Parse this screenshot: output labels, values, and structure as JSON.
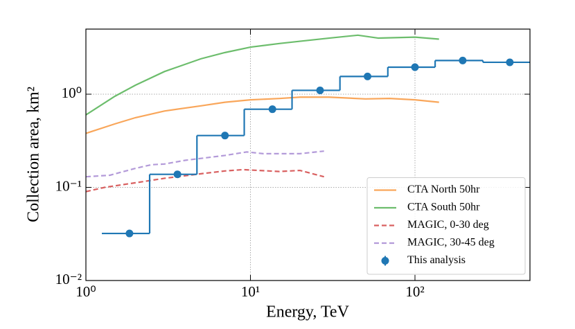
{
  "chart_data": {
    "type": "line",
    "xlabel": "Energy, TeV",
    "ylabel": "Collection area, km²",
    "xscale": "log",
    "yscale": "log",
    "xlim": [
      1,
      500
    ],
    "ylim": [
      0.01,
      5
    ],
    "xticks": [
      {
        "value": 1,
        "label": "10⁰"
      },
      {
        "value": 10,
        "label": "10¹"
      },
      {
        "value": 100,
        "label": "10²"
      }
    ],
    "yticks": [
      {
        "value": 0.01,
        "label": "10⁻²"
      },
      {
        "value": 0.1,
        "label": "10⁻¹"
      },
      {
        "value": 1,
        "label": "10⁰"
      }
    ],
    "grid": true,
    "legend": "lower right",
    "series": [
      {
        "name": "CTA North 50hr",
        "color": "#f9a65a",
        "style": "solid",
        "x": [
          1,
          1.5,
          2,
          3,
          5,
          7,
          10,
          15,
          20,
          30,
          50,
          70,
          100,
          140
        ],
        "values": [
          0.38,
          0.48,
          0.56,
          0.66,
          0.75,
          0.82,
          0.87,
          0.9,
          0.93,
          0.93,
          0.89,
          0.9,
          0.87,
          0.82
        ]
      },
      {
        "name": "CTA South 50hr",
        "color": "#6cbd6c",
        "style": "solid",
        "x": [
          1,
          1.5,
          2,
          3,
          5,
          7,
          10,
          15,
          20,
          30,
          45,
          60,
          100,
          140
        ],
        "values": [
          0.6,
          0.95,
          1.25,
          1.75,
          2.4,
          2.8,
          3.2,
          3.5,
          3.7,
          4.0,
          4.3,
          4.0,
          4.1,
          3.9
        ]
      },
      {
        "name": "MAGIC, 0-30 deg",
        "color": "#d96060",
        "style": "dashed",
        "x": [
          1,
          1.3,
          2,
          3,
          5,
          7,
          9,
          15,
          20,
          28
        ],
        "values": [
          0.09,
          0.1,
          0.112,
          0.125,
          0.14,
          0.15,
          0.155,
          0.148,
          0.152,
          0.13
        ]
      },
      {
        "name": "MAGIC, 30-45 deg",
        "color": "#b39ad9",
        "style": "dashed",
        "x": [
          1,
          1.4,
          2,
          2.5,
          3,
          4,
          7,
          9.5,
          12,
          20,
          28
        ],
        "values": [
          0.13,
          0.135,
          0.16,
          0.175,
          0.178,
          0.195,
          0.22,
          0.24,
          0.23,
          0.23,
          0.245
        ]
      },
      {
        "name": "This analysis",
        "color": "#1f77b4",
        "style": "steps",
        "bins": [
          1.25,
          2.44,
          4.73,
          9.17,
          17.9,
          35,
          68.4,
          132.6,
          259,
          500
        ],
        "x": [
          1.84,
          3.6,
          7.0,
          13.6,
          26.5,
          51.5,
          100,
          195,
          377
        ],
        "values": [
          0.032,
          0.138,
          0.36,
          0.69,
          1.1,
          1.55,
          1.95,
          2.3,
          2.2
        ]
      }
    ]
  }
}
